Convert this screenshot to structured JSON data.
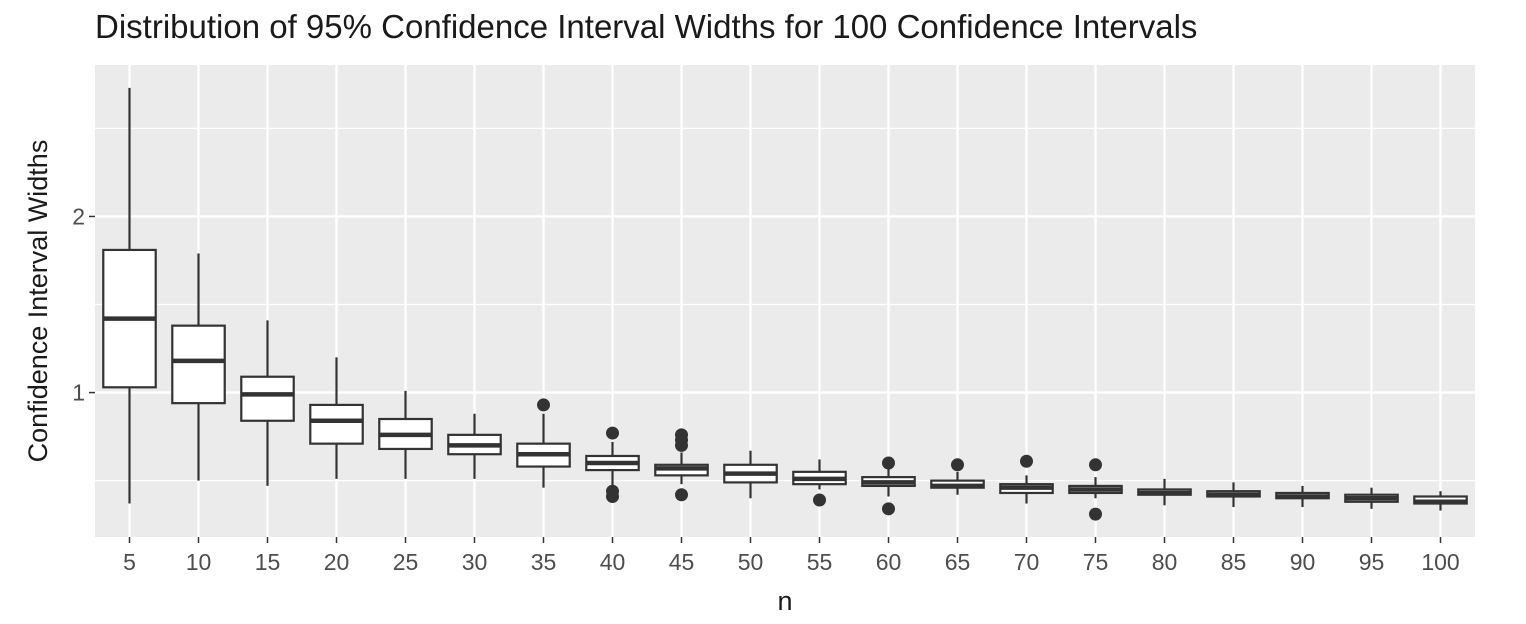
{
  "chart_data": {
    "type": "boxplot",
    "title": "Distribution of 95% Confidence Interval Widths for 100 Confidence Intervals",
    "xlabel": "n",
    "ylabel": "Confidence Interval Widths",
    "ylim": [
      0.18,
      2.86
    ],
    "yticks": [
      1,
      2
    ],
    "grid": true,
    "legend": "none",
    "colors": {
      "panel": "#ebebeb",
      "grid": "#ffffff",
      "box_fill": "#ffffff",
      "box_line": "#333333",
      "tick_text": "#4d4d4d"
    },
    "categories": [
      "5",
      "10",
      "15",
      "20",
      "25",
      "30",
      "35",
      "40",
      "45",
      "50",
      "55",
      "60",
      "65",
      "70",
      "75",
      "80",
      "85",
      "90",
      "95",
      "100"
    ],
    "boxes": [
      {
        "x": "5",
        "min": 0.37,
        "q1": 1.03,
        "median": 1.42,
        "q3": 1.81,
        "max": 2.73,
        "outliers": []
      },
      {
        "x": "10",
        "min": 0.5,
        "q1": 0.94,
        "median": 1.18,
        "q3": 1.38,
        "max": 1.79,
        "outliers": []
      },
      {
        "x": "15",
        "min": 0.47,
        "q1": 0.84,
        "median": 0.99,
        "q3": 1.09,
        "max": 1.41,
        "outliers": []
      },
      {
        "x": "20",
        "min": 0.51,
        "q1": 0.71,
        "median": 0.84,
        "q3": 0.93,
        "max": 1.2,
        "outliers": []
      },
      {
        "x": "25",
        "min": 0.51,
        "q1": 0.68,
        "median": 0.76,
        "q3": 0.85,
        "max": 1.01,
        "outliers": []
      },
      {
        "x": "30",
        "min": 0.51,
        "q1": 0.65,
        "median": 0.7,
        "q3": 0.76,
        "max": 0.88,
        "outliers": []
      },
      {
        "x": "35",
        "min": 0.46,
        "q1": 0.58,
        "median": 0.65,
        "q3": 0.71,
        "max": 0.88,
        "outliers": [
          0.93
        ]
      },
      {
        "x": "40",
        "min": 0.47,
        "q1": 0.56,
        "median": 0.6,
        "q3": 0.64,
        "max": 0.72,
        "outliers": [
          0.77,
          0.44,
          0.41
        ]
      },
      {
        "x": "45",
        "min": 0.48,
        "q1": 0.53,
        "median": 0.57,
        "q3": 0.59,
        "max": 0.66,
        "outliers": [
          0.76,
          0.73,
          0.7,
          0.42
        ]
      },
      {
        "x": "50",
        "min": 0.4,
        "q1": 0.49,
        "median": 0.54,
        "q3": 0.59,
        "max": 0.67,
        "outliers": []
      },
      {
        "x": "55",
        "min": 0.45,
        "q1": 0.48,
        "median": 0.51,
        "q3": 0.55,
        "max": 0.62,
        "outliers": [
          0.39
        ]
      },
      {
        "x": "60",
        "min": 0.41,
        "q1": 0.47,
        "median": 0.49,
        "q3": 0.52,
        "max": 0.57,
        "outliers": [
          0.6,
          0.34
        ]
      },
      {
        "x": "65",
        "min": 0.42,
        "q1": 0.46,
        "median": 0.47,
        "q3": 0.5,
        "max": 0.55,
        "outliers": [
          0.59
        ]
      },
      {
        "x": "70",
        "min": 0.37,
        "q1": 0.43,
        "median": 0.46,
        "q3": 0.48,
        "max": 0.53,
        "outliers": [
          0.61
        ]
      },
      {
        "x": "75",
        "min": 0.4,
        "q1": 0.43,
        "median": 0.45,
        "q3": 0.47,
        "max": 0.52,
        "outliers": [
          0.59,
          0.31
        ]
      },
      {
        "x": "80",
        "min": 0.36,
        "q1": 0.42,
        "median": 0.43,
        "q3": 0.45,
        "max": 0.51,
        "outliers": []
      },
      {
        "x": "85",
        "min": 0.35,
        "q1": 0.41,
        "median": 0.42,
        "q3": 0.44,
        "max": 0.49,
        "outliers": []
      },
      {
        "x": "90",
        "min": 0.35,
        "q1": 0.4,
        "median": 0.41,
        "q3": 0.43,
        "max": 0.47,
        "outliers": []
      },
      {
        "x": "95",
        "min": 0.34,
        "q1": 0.38,
        "median": 0.4,
        "q3": 0.42,
        "max": 0.46,
        "outliers": []
      },
      {
        "x": "100",
        "min": 0.33,
        "q1": 0.37,
        "median": 0.38,
        "q3": 0.41,
        "max": 0.44,
        "outliers": []
      }
    ]
  }
}
